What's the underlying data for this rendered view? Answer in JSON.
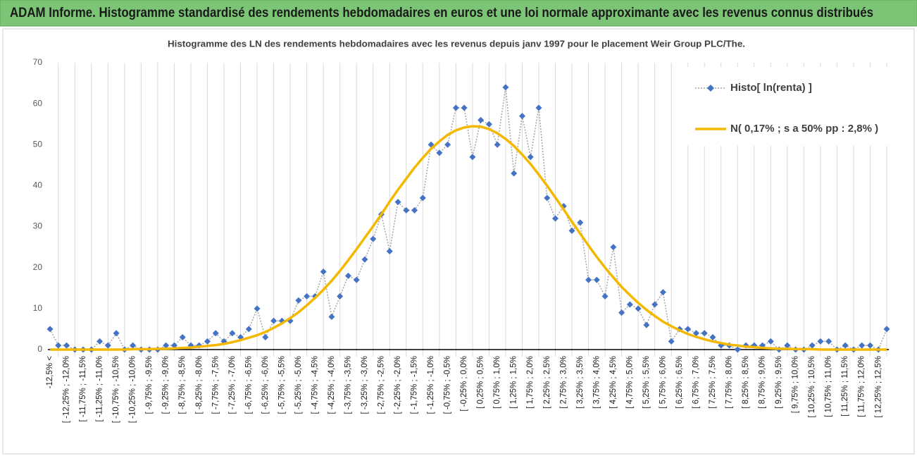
{
  "chart_data": {
    "type": "line",
    "header": "ADAM Informe. Histogramme standardisé des rendements hebdomadaires en euros et une loi normale approximante avec les revenus connus distribués",
    "title": "Histogramme des LN des rendements hebdomadaires avec les revenus depuis janv 1997 pour le placement Weir Group PLC/The.",
    "categories": [
      "-12,5% <",
      null,
      "[ -12,25% ; -12,0%",
      null,
      "[ -11,75% ; -11,5%",
      null,
      "[ -11,25% ; -11,0%",
      null,
      "[ -10,75% ; -10,5%",
      null,
      "[ -10,25% ; -10,0%",
      null,
      "[ -9,75% ; -9,5%",
      null,
      "[ -9,25% ; -9,0%",
      null,
      "[ -8,75% ; -8,5%",
      null,
      "[ -8,25% ; -8,0%",
      null,
      "[ -7,75% ; -7,5%",
      null,
      "[ -7,25% ; -7,0%",
      null,
      "[ -6,75% ; -6,5%",
      null,
      "[ -6,25% ; -6,0%",
      null,
      "[ -5,75% ; -5,5%",
      null,
      "[ -5,25% ; -5,0%",
      null,
      "[ -4,75% ; -4,5%",
      null,
      "[ -4,25% ; -4,0%",
      null,
      "[ -3,75% ; -3,5%",
      null,
      "[ -3,25% ; -3,0%",
      null,
      "[ -2,75% ; -2,5%",
      null,
      "[ -2,25% ; -2,0%",
      null,
      "[ -1,75% ; -1,5%",
      null,
      "[ -1,25% ; -1,0%",
      null,
      "[ -0,75% ; -0,5%",
      null,
      "[ -0,25% ; 0,0%",
      null,
      "[ 0,25% ; 0,5%",
      null,
      "[ 0,75% ; 1,0%",
      null,
      "[ 1,25% ; 1,5%",
      null,
      "[ 1,75% ; 2,0%",
      null,
      "[ 2,25% ; 2,5%",
      null,
      "[ 2,75% ; 3,0%",
      null,
      "[ 3,25% ; 3,5%",
      null,
      "[ 3,75% ; 4,0%",
      null,
      "[ 4,25% ; 4,5%",
      null,
      "[ 4,75% ; 5,0%",
      null,
      "[ 5,25% ; 5,5%",
      null,
      "[ 5,75% ; 6,0%",
      null,
      "[ 6,25% ; 6,5%",
      null,
      "[ 6,75% ; 7,0%",
      null,
      "[ 7,25% ; 7,5%",
      null,
      "[ 7,75% ; 8,0%",
      null,
      "[ 8,25% ; 8,5%",
      null,
      "[ 8,75% ; 9,0%",
      null,
      "[ 9,25% ; 9,5%",
      null,
      "[ 9,75% ; 10,0%",
      null,
      "[ 10,25% ; 10,5%",
      null,
      "[ 10,75% ; 11,0%",
      null,
      "[ 11,25% ; 11,5%",
      null,
      "[ 11,75% ; 12,0%",
      null,
      "[ 12,25% ; 12,5%",
      null
    ],
    "series": [
      {
        "name": "Histo[ ln(renta) ]",
        "color": "#4472c4",
        "line_color": "#a6a6a6",
        "line_style": "dotted",
        "marker": "diamond",
        "values": [
          5,
          1,
          1,
          0,
          0,
          0,
          2,
          1,
          4,
          0,
          1,
          0,
          0,
          0,
          1,
          1,
          3,
          1,
          1,
          2,
          4,
          2,
          4,
          3,
          5,
          10,
          3,
          7,
          7,
          7,
          12,
          13,
          13,
          19,
          8,
          13,
          18,
          17,
          22,
          27,
          33,
          24,
          36,
          34,
          34,
          37,
          50,
          48,
          50,
          59,
          59,
          47,
          56,
          55,
          50,
          64,
          43,
          57,
          47,
          59,
          37,
          32,
          35,
          29,
          31,
          17,
          17,
          13,
          25,
          9,
          11,
          10,
          6,
          11,
          14,
          2,
          5,
          5,
          4,
          4,
          3,
          1,
          1,
          0,
          1,
          1,
          1,
          2,
          0,
          1,
          0,
          0,
          1,
          2,
          2,
          0,
          1,
          0,
          1,
          1,
          0,
          5
        ]
      },
      {
        "name": "N( 0,17% ; s a 50% pp : 2,8% )",
        "color": "#f5b800",
        "line_color": "#f5b800",
        "line_style": "solid",
        "marker": "none",
        "values": [
          0,
          0,
          0,
          0,
          0,
          0,
          0,
          0,
          0,
          0,
          0.1,
          0.1,
          0.1,
          0.2,
          0.2,
          0.3,
          0.4,
          0.5,
          0.7,
          0.9,
          1.1,
          1.4,
          1.8,
          2.3,
          2.9,
          3.5,
          4.3,
          5.3,
          6.4,
          7.7,
          9.1,
          10.8,
          12.6,
          14.6,
          16.8,
          19.2,
          21.8,
          24.5,
          27.3,
          30.1,
          33.0,
          36.1,
          39.0,
          41.7,
          44.4,
          46.8,
          49.0,
          50.8,
          52.4,
          53.5,
          54.2,
          54.5,
          54.4,
          53.8,
          52.8,
          51.4,
          49.7,
          47.6,
          45.3,
          42.7,
          40.0,
          37.1,
          34.2,
          31.2,
          28.3,
          25.4,
          22.6,
          20.0,
          17.6,
          15.3,
          13.3,
          11.4,
          9.7,
          8.2,
          6.8,
          5.7,
          4.7,
          3.8,
          3.1,
          2.5,
          2.0,
          1.6,
          1.2,
          1.0,
          0.7,
          0.6,
          0.4,
          0.3,
          0.2,
          0.2,
          0.1,
          0.1,
          0.1,
          0,
          0,
          0,
          0,
          0,
          0,
          0,
          0,
          0
        ]
      }
    ],
    "ylim": [
      0,
      70
    ],
    "yticks": [
      0,
      10,
      20,
      30,
      40,
      50,
      60,
      70
    ],
    "legend": "top-right"
  }
}
